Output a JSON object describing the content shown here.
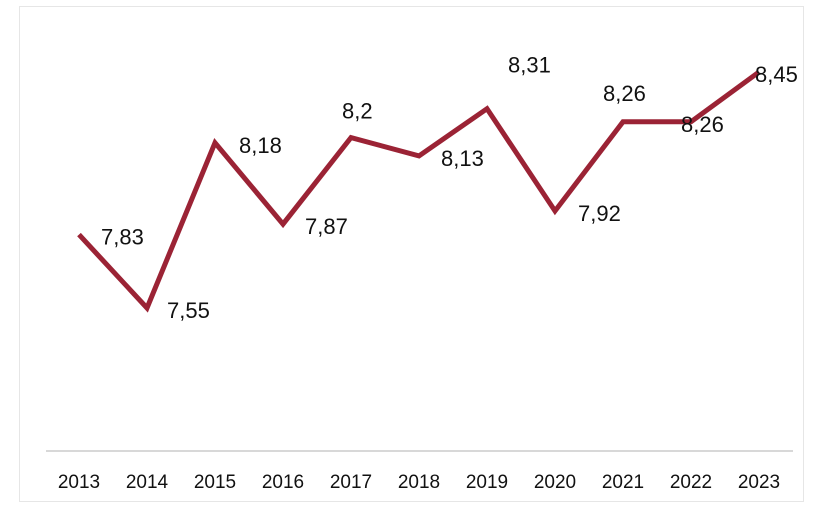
{
  "chart_data": {
    "type": "line",
    "title": "",
    "xlabel": "",
    "ylabel": "",
    "categories": [
      "2013",
      "2014",
      "2015",
      "2016",
      "2017",
      "2018",
      "2019",
      "2020",
      "2021",
      "2022",
      "2023"
    ],
    "series": [
      {
        "values": [
          7.83,
          7.55,
          8.18,
          7.87,
          8.2,
          8.13,
          8.31,
          7.92,
          8.26,
          8.26,
          8.45
        ],
        "data_labels": [
          "7,83",
          "7,55",
          "8,18",
          "7,87",
          "8,2",
          "8,13",
          "8,31",
          "7,92",
          "8,26",
          "8,26",
          "8,45"
        ],
        "color": "#9b2335"
      }
    ],
    "grid": false,
    "legend": "none"
  }
}
